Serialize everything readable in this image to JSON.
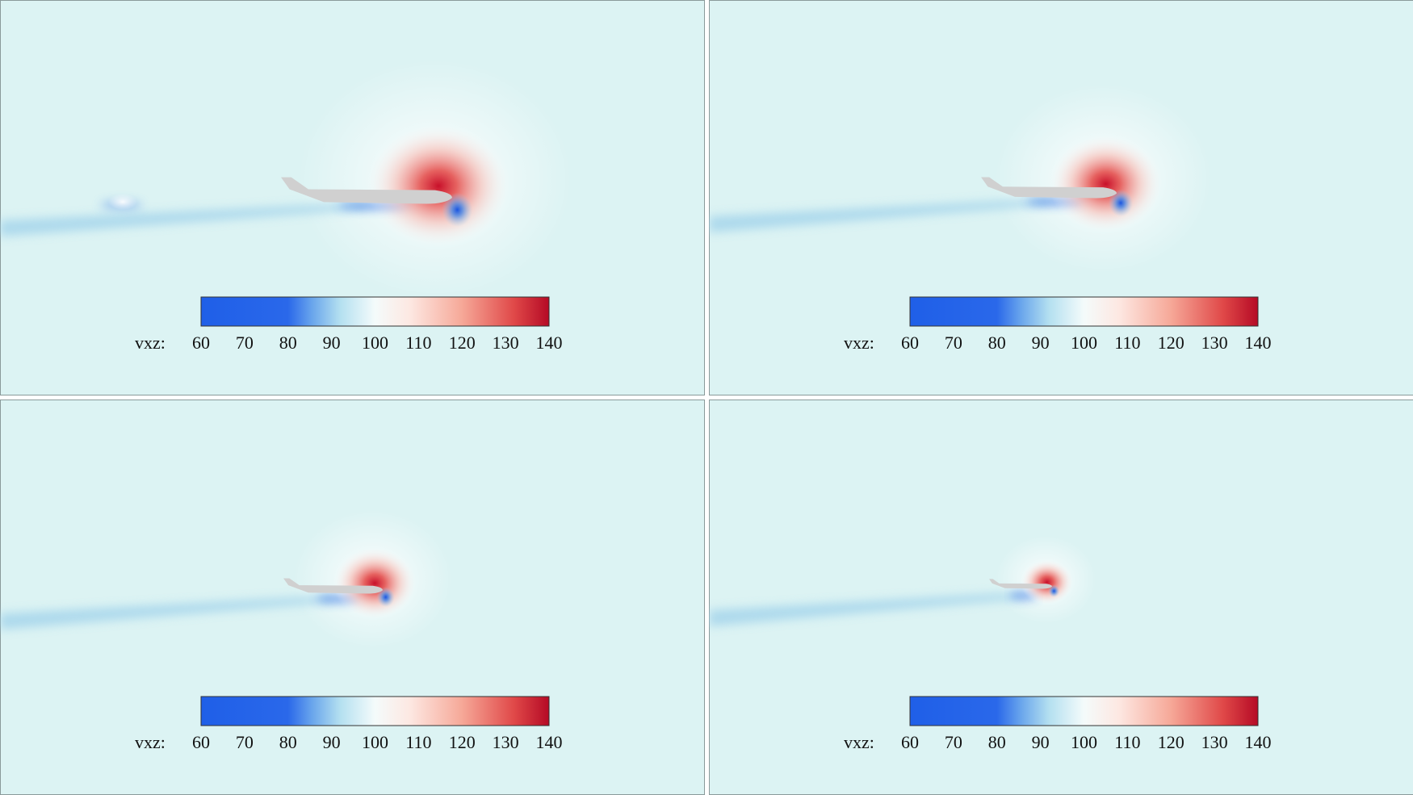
{
  "panels": [
    {
      "colorbar": {
        "label": "vxz:",
        "range": [
          60,
          140
        ],
        "ticks": [
          60,
          70,
          80,
          90,
          100,
          110,
          120,
          130,
          140
        ]
      }
    },
    {
      "colorbar": {
        "label": "vxz:",
        "range": [
          60,
          140
        ],
        "ticks": [
          60,
          70,
          80,
          90,
          100,
          110,
          120,
          130,
          140
        ]
      }
    },
    {
      "colorbar": {
        "label": "vxz:",
        "range": [
          60,
          140
        ],
        "ticks": [
          60,
          70,
          80,
          90,
          100,
          110,
          120,
          130,
          140
        ]
      }
    },
    {
      "colorbar": {
        "label": "vxz:",
        "range": [
          60,
          140
        ],
        "ticks": [
          60,
          70,
          80,
          90,
          100,
          110,
          120,
          130,
          140
        ]
      }
    }
  ]
}
